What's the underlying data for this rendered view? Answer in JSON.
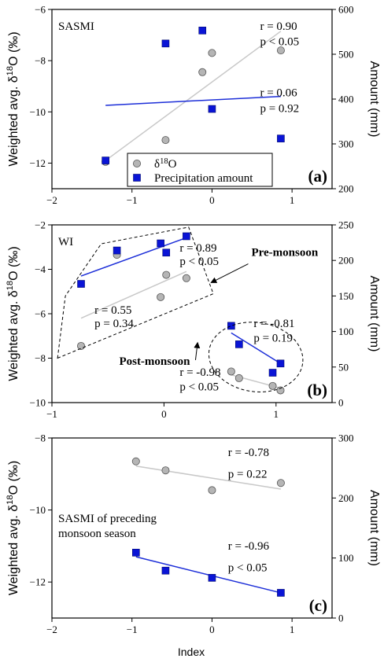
{
  "figure": {
    "ylabel_left": "Weighted avg. δ18O (‰)",
    "ylabel_right": "Amount (mm)",
    "xlabel": "Index"
  },
  "chart_data": [
    {
      "type": "scatter",
      "panel_label": "(a)",
      "title": "SASMI",
      "xlim": [
        -2,
        1.5
      ],
      "xticks": [
        -2,
        -1,
        0,
        1
      ],
      "ylim_left": [
        -13,
        -6
      ],
      "yticks_left": [
        -12,
        -10,
        -8,
        -6
      ],
      "ylim_right": [
        200,
        600
      ],
      "yticks_right": [
        200,
        300,
        400,
        500,
        600
      ],
      "legend": {
        "items": [
          "δ18O",
          "Precipitation amount"
        ],
        "placement": "bottom-center"
      },
      "series": [
        {
          "name": "δ18O",
          "axis": "left",
          "marker": "circle",
          "color": "#b5b5b5",
          "x": [
            -1.33,
            -0.58,
            -0.12,
            0.0,
            0.86
          ],
          "y": [
            -11.95,
            -11.1,
            -8.45,
            -7.7,
            -7.6
          ]
        },
        {
          "name": "Precipitation amount",
          "axis": "right",
          "marker": "square",
          "color": "#0a14d6",
          "x": [
            -1.33,
            -0.58,
            -0.12,
            0.0,
            0.86
          ],
          "y": [
            263,
            524,
            553,
            378,
            312
          ]
        }
      ],
      "fits": [
        {
          "series": "δ18O",
          "axis": "left",
          "color": "#c8c8c8",
          "x": [
            -1.33,
            0.86
          ],
          "y": [
            -11.9,
            -6.85
          ]
        },
        {
          "series": "Precipitation amount",
          "axis": "right",
          "color": "#1c2ed8",
          "x": [
            -1.33,
            0.86
          ],
          "y": [
            386,
            406
          ]
        }
      ],
      "annotations": [
        {
          "text": "r = 0.90",
          "x": 0.6,
          "y": -6.8
        },
        {
          "text": "p < 0.05",
          "x": 0.6,
          "y": -7.4
        },
        {
          "text": "r = 0.06",
          "x": 0.6,
          "y": -9.4
        },
        {
          "text": "p = 0.92",
          "x": 0.6,
          "y": -10.0
        }
      ]
    },
    {
      "type": "scatter",
      "panel_label": "(b)",
      "title": "WI",
      "xlim": [
        -1,
        1.5
      ],
      "xticks": [
        -1,
        0,
        1
      ],
      "ylim_left": [
        -10,
        -2
      ],
      "yticks_left": [
        -10,
        -8,
        -6,
        -4,
        -2
      ],
      "ylim_right": [
        0,
        250
      ],
      "yticks_right": [
        0,
        50,
        100,
        150,
        200,
        250
      ],
      "series": [
        {
          "name": "δ18O",
          "axis": "left",
          "marker": "circle",
          "color": "#b5b5b5",
          "x": [
            -0.74,
            -0.42,
            -0.03,
            0.02,
            0.2,
            0.6,
            0.67,
            0.97,
            1.04
          ],
          "y": [
            -7.45,
            -3.35,
            -5.25,
            -4.25,
            -4.4,
            -8.6,
            -8.9,
            -9.25,
            -9.45
          ]
        },
        {
          "name": "Precipitation amount",
          "axis": "right",
          "marker": "square",
          "color": "#0a14d6",
          "x": [
            -0.74,
            -0.42,
            -0.03,
            0.02,
            0.2,
            0.6,
            0.67,
            0.97,
            1.04
          ],
          "y": [
            167,
            214,
            224,
            211,
            234,
            108,
            82,
            42,
            55
          ]
        }
      ],
      "fits": [
        {
          "series": "δ18O",
          "axis": "left",
          "color": "#c8c8c8",
          "x": [
            -0.74,
            0.2
          ],
          "y": [
            -6.2,
            -4.1
          ]
        },
        {
          "series": "Precipitation amount",
          "axis": "right",
          "color": "#1c2ed8",
          "x": [
            -0.74,
            0.2
          ],
          "y": [
            178,
            232
          ]
        },
        {
          "series": "δ18O",
          "axis": "left",
          "color": "#c8c8c8",
          "x": [
            0.6,
            1.04
          ],
          "y": [
            -8.75,
            -9.35
          ]
        },
        {
          "series": "Precipitation amount",
          "axis": "right",
          "color": "#1c2ed8",
          "x": [
            0.6,
            1.04
          ],
          "y": [
            98,
            55
          ]
        }
      ],
      "annotations": [
        {
          "text": "r = 0.89",
          "x": 0.14,
          "y": -3.2
        },
        {
          "text": "p < 0.05",
          "x": 0.14,
          "y": -3.8
        },
        {
          "text": "r = 0.55",
          "x": -0.62,
          "y": -6.0
        },
        {
          "text": "p = 0.34",
          "x": -0.62,
          "y": -6.6
        },
        {
          "text": "r = -0.81",
          "x": 0.8,
          "y": -6.6
        },
        {
          "text": "p = 0.19",
          "x": 0.8,
          "y": -7.25
        },
        {
          "text": "r = -0.98",
          "x": 0.14,
          "y": -8.8
        },
        {
          "text": "p < 0.05",
          "x": 0.14,
          "y": -9.45
        }
      ],
      "callouts": [
        {
          "text": "Pre-monsoon",
          "x": 0.78,
          "y": -3.4,
          "arrow_to": [
            0.42,
            -4.6
          ]
        },
        {
          "text": "Post-monsoon",
          "x": -0.4,
          "y": -8.3,
          "arrow_to": [
            0.3,
            -7.3
          ]
        }
      ]
    },
    {
      "type": "scatter",
      "panel_label": "(c)",
      "title": "SASMI of preceding monsoon season",
      "title_lines": [
        "SASMI of preceding",
        "monsoon season"
      ],
      "xlim": [
        -2,
        1.5
      ],
      "xticks": [
        -2,
        -1,
        0,
        1
      ],
      "ylim_left": [
        -13,
        -8
      ],
      "yticks_left": [
        -12,
        -10,
        -8
      ],
      "ylim_right": [
        0,
        300
      ],
      "yticks_right": [
        0,
        100,
        200,
        300
      ],
      "series": [
        {
          "name": "δ18O",
          "axis": "left",
          "marker": "circle",
          "color": "#b5b5b5",
          "x": [
            -0.95,
            -0.58,
            0.0,
            0.86
          ],
          "y": [
            -8.65,
            -8.9,
            -9.45,
            -9.25
          ]
        },
        {
          "name": "Precipitation amount",
          "axis": "right",
          "marker": "square",
          "color": "#0a14d6",
          "x": [
            -0.95,
            -0.58,
            0.0,
            0.86
          ],
          "y": [
            109,
            79,
            67,
            42
          ]
        }
      ],
      "fits": [
        {
          "series": "δ18O",
          "axis": "left",
          "color": "#c8c8c8",
          "x": [
            -0.95,
            0.86
          ],
          "y": [
            -8.78,
            -9.42
          ]
        },
        {
          "series": "Precipitation amount",
          "axis": "right",
          "color": "#1c2ed8",
          "x": [
            -0.95,
            0.86
          ],
          "y": [
            102,
            42
          ]
        }
      ],
      "annotations": [
        {
          "text": "r = -0.78",
          "x": 0.2,
          "y": -8.5
        },
        {
          "text": "p = 0.22",
          "x": 0.2,
          "y": -9.1
        },
        {
          "text": "r = -0.96",
          "x": 0.2,
          "y": -11.1
        },
        {
          "text": "p < 0.05",
          "x": 0.2,
          "y": -11.7
        }
      ]
    }
  ]
}
